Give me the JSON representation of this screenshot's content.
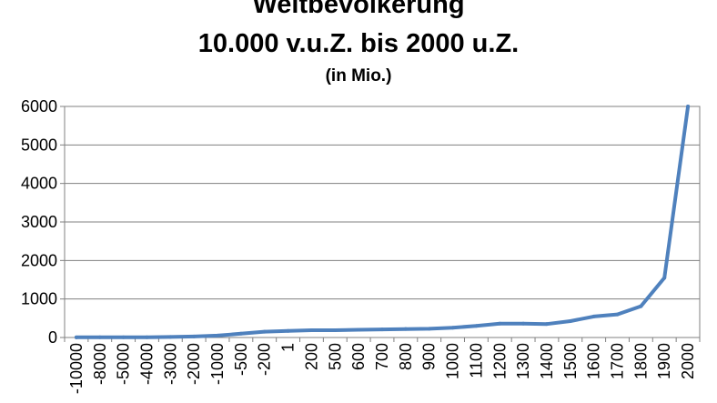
{
  "chart_data": {
    "type": "line",
    "title": "Weltbevölkerung",
    "subtitle": "10.000 v.u.Z. bis 2000 u.Z.",
    "unit_note": "(in Mio.)",
    "xlabel": "",
    "ylabel": "",
    "ylim": [
      0,
      6000
    ],
    "yticks": [
      "0",
      "1000",
      "2000",
      "3000",
      "4000",
      "5000",
      "6000"
    ],
    "grid": true,
    "legend": "none",
    "line_color": "#4f81bd",
    "categories": [
      "-10000",
      "-8000",
      "-5000",
      "-4000",
      "-3000",
      "-2000",
      "-1000",
      "-500",
      "-200",
      "1",
      "200",
      "500",
      "600",
      "700",
      "800",
      "900",
      "1000",
      "1100",
      "1200",
      "1300",
      "1400",
      "1500",
      "1600",
      "1700",
      "1800",
      "1900",
      "2000"
    ],
    "series": [
      {
        "values": [
          4,
          5,
          5,
          7,
          14,
          27,
          50,
          100,
          150,
          170,
          190,
          190,
          200,
          210,
          220,
          226,
          254,
          301,
          360,
          360,
          350,
          425,
          545,
          600,
          813,
          1550,
          6000
        ]
      }
    ]
  }
}
